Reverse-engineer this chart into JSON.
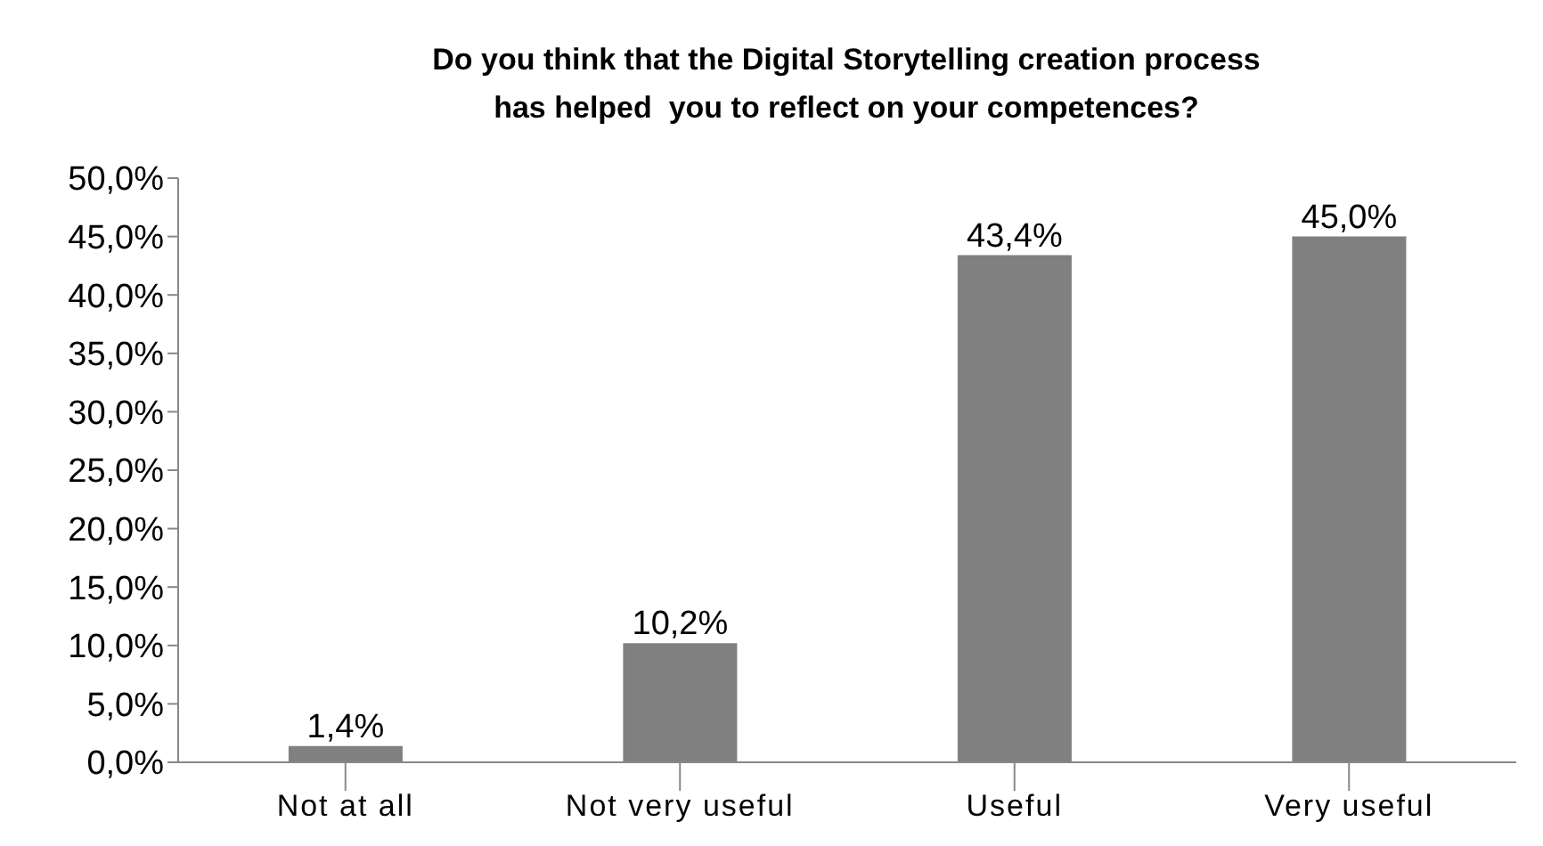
{
  "chart_data": {
    "type": "bar",
    "title": "Do you think that the Digital Storytelling creation process\nhas helped  you to reflect on your competences?",
    "categories": [
      "Not at all",
      "Not very useful",
      "Useful",
      "Very useful"
    ],
    "values": [
      1.4,
      10.2,
      43.4,
      45.0
    ],
    "value_labels": [
      "1,4%",
      "10,2%",
      "43,4%",
      "45,0%"
    ],
    "color": "#808080",
    "ylim": [
      0,
      50
    ],
    "yticks": [
      {
        "value": 0,
        "label": "0,0%"
      },
      {
        "value": 5,
        "label": "5,0%"
      },
      {
        "value": 10,
        "label": "10,0%"
      },
      {
        "value": 15,
        "label": "15,0%"
      },
      {
        "value": 20,
        "label": "20,0%"
      },
      {
        "value": 25,
        "label": "25,0%"
      },
      {
        "value": 30,
        "label": "30,0%"
      },
      {
        "value": 35,
        "label": "35,0%"
      },
      {
        "value": 40,
        "label": "40,0%"
      },
      {
        "value": 45,
        "label": "45,0%"
      },
      {
        "value": 50,
        "label": "50,0%"
      }
    ],
    "grid": false,
    "legend": false
  }
}
